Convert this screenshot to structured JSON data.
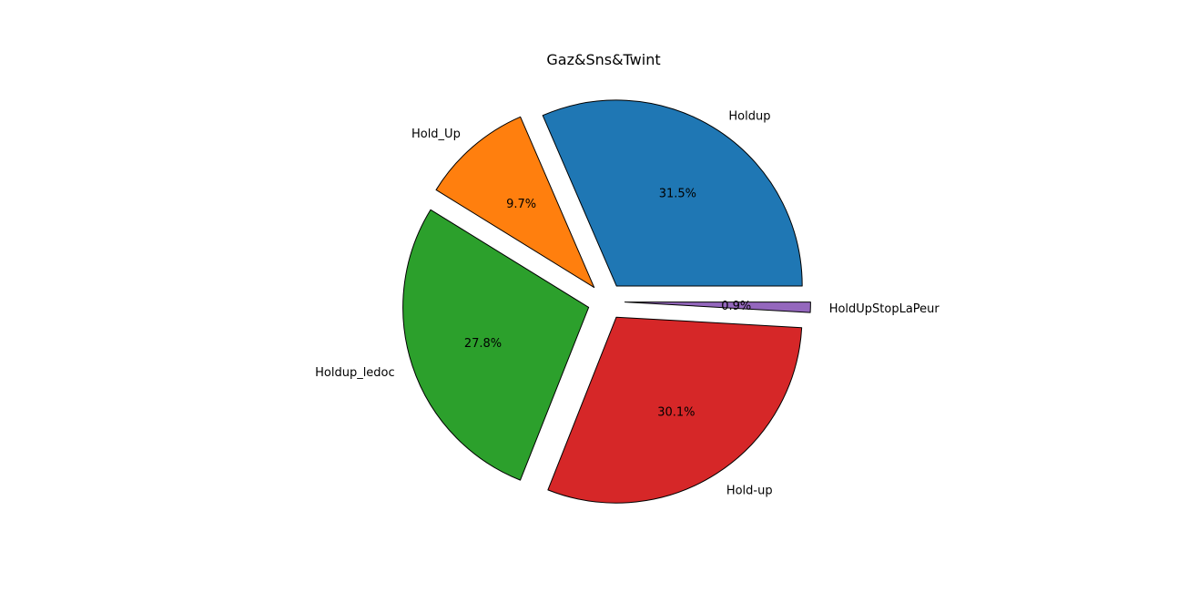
{
  "chart_data": {
    "type": "pie",
    "title": "Gaz&Sns&Twint",
    "categories": [
      "Holdup",
      "Hold_Up",
      "Holdup_ledoc",
      "Hold-up",
      "HoldUpStopLaPeur"
    ],
    "values": [
      31.5,
      9.7,
      27.8,
      30.1,
      0.9
    ],
    "percent_labels": [
      "31.5%",
      "9.7%",
      "27.8%",
      "30.1%",
      "0.9%"
    ],
    "colors": [
      "#1f77b4",
      "#ff7f0e",
      "#2ca02c",
      "#d62728",
      "#9467bd"
    ],
    "exploded": true,
    "start_angle_deg": 0,
    "direction": "counterclockwise"
  }
}
